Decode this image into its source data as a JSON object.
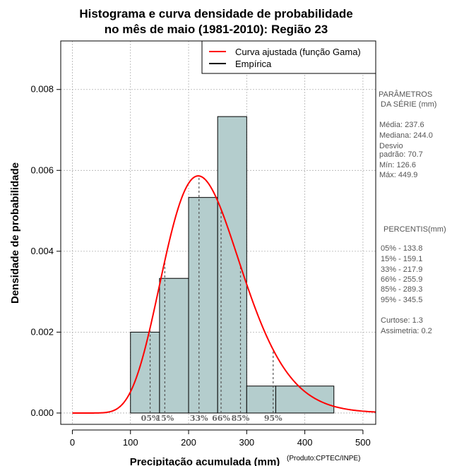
{
  "chart_data": {
    "type": "histogram",
    "title_line1": "Histograma e curva densidade de probabilidade",
    "title_line2": "no mês de maio (1981-2010): Região 23",
    "xlabel": "Precipitação acumulada (mm)",
    "ylabel": "Densidade de probabilidade",
    "credit": "(Produto:CPTEC/INPE)",
    "xlim": [
      -20,
      522
    ],
    "ylim": [
      -0.00028,
      0.0092
    ],
    "xticks": [
      0,
      100,
      200,
      300,
      400,
      500
    ],
    "xtick_labels": [
      "0",
      "100",
      "200",
      "300",
      "400",
      "500"
    ],
    "yticks": [
      0.0,
      0.002,
      0.004,
      0.006,
      0.008
    ],
    "ytick_labels": [
      "0.000",
      "0.002",
      "0.004",
      "0.006",
      "0.008"
    ],
    "grid": true,
    "bins": [
      {
        "start": 100,
        "end": 150,
        "density": 0.002
      },
      {
        "start": 150,
        "end": 200,
        "density": 0.00333
      },
      {
        "start": 200,
        "end": 250,
        "density": 0.00533
      },
      {
        "start": 250,
        "end": 300,
        "density": 0.00733
      },
      {
        "start": 300,
        "end": 350,
        "density": 0.000667
      },
      {
        "start": 350,
        "end": 450,
        "density": 0.000667
      }
    ],
    "gamma_fit": {
      "mean": 237.6,
      "sd": 70.7,
      "x_range": [
        0,
        522
      ]
    },
    "percentile_markers": [
      {
        "label": "05%",
        "value": 133.8
      },
      {
        "label": "15%",
        "value": 159.1
      },
      {
        "label": "33%",
        "value": 217.9
      },
      {
        "label": "66%",
        "value": 255.9
      },
      {
        "label": "85%",
        "value": 289.3
      },
      {
        "label": "95%",
        "value": 345.5
      }
    ],
    "legend": {
      "position": "top-right",
      "entries": [
        {
          "label": "Curva ajustada (função Gama)",
          "color": "#ff0000"
        },
        {
          "label": "Empírica",
          "color": "#000000"
        }
      ]
    },
    "colors": {
      "bar_fill": "#b4cdcd",
      "curve": "#ff0000",
      "grid": "#b0b0b0",
      "marker": "#555555"
    }
  },
  "side_panel": {
    "params_title_1": "PARÂMETROS",
    "params_title_2": "DA SÉRIE (mm)",
    "stats": [
      {
        "text": "Média:  237.6"
      },
      {
        "text": "Mediana:  244.0"
      },
      {
        "text": "Desvio"
      },
      {
        "text": "padrão:  70.7"
      },
      {
        "text": "Mín:  126.6"
      },
      {
        "text": "Máx:  449.9"
      }
    ],
    "percentis_title": "PERCENTIS(mm)",
    "percentis": [
      {
        "text": "05% -   133.8"
      },
      {
        "text": "15% -   159.1"
      },
      {
        "text": "33% -   217.9"
      },
      {
        "text": "66% -   255.9"
      },
      {
        "text": "85% -   289.3"
      },
      {
        "text": "95% -   345.5"
      }
    ],
    "curtose": "Curtose:  1.3",
    "assimetria": "Assimetria:  0.2"
  }
}
